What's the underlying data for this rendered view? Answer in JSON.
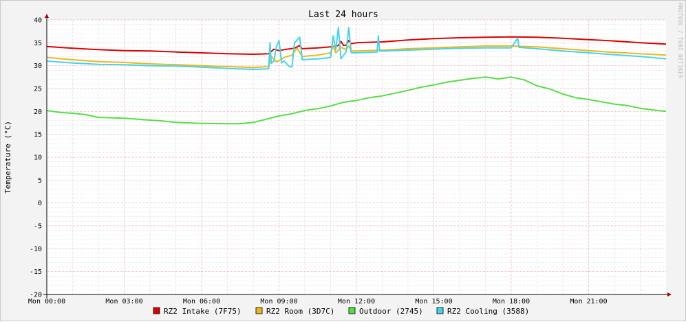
{
  "chart_data": {
    "type": "line",
    "title": "Last 24 hours",
    "ylabel": "Temperature (°C)",
    "xlabel": "",
    "watermark": "RRDTOOL / TOBI OETIKER",
    "ylim": [
      -20,
      40
    ],
    "yticks": [
      40,
      35,
      30,
      25,
      20,
      15,
      10,
      5,
      0,
      -5,
      -10,
      -15,
      -20
    ],
    "xlim": [
      0,
      24
    ],
    "xticks": [
      {
        "x": 0,
        "label": "Mon 00:00"
      },
      {
        "x": 3,
        "label": "Mon 03:00"
      },
      {
        "x": 6,
        "label": "Mon 06:00"
      },
      {
        "x": 9,
        "label": "Mon 09:00"
      },
      {
        "x": 12,
        "label": "Mon 12:00"
      },
      {
        "x": 15,
        "label": "Mon 15:00"
      },
      {
        "x": 18,
        "label": "Mon 18:00"
      },
      {
        "x": 21,
        "label": "Mon 21:00"
      }
    ],
    "grid": true,
    "legend_position": "bottom",
    "series": [
      {
        "name": "RZ2 Intake (7F75)",
        "color": "#dd0000",
        "points": [
          [
            0,
            34.2
          ],
          [
            1,
            33.8
          ],
          [
            2,
            33.5
          ],
          [
            3,
            33.3
          ],
          [
            4,
            33.2
          ],
          [
            5,
            33.0
          ],
          [
            6,
            32.8
          ],
          [
            7,
            32.6
          ],
          [
            8,
            32.5
          ],
          [
            8.6,
            32.6
          ],
          [
            8.8,
            33.6
          ],
          [
            9.0,
            33.3
          ],
          [
            9.2,
            33.5
          ],
          [
            9.6,
            33.8
          ],
          [
            9.8,
            34.4
          ],
          [
            9.9,
            33.7
          ],
          [
            10.5,
            33.9
          ],
          [
            11.0,
            34.1
          ],
          [
            11.3,
            34.4
          ],
          [
            11.4,
            35.3
          ],
          [
            11.5,
            34.4
          ],
          [
            11.6,
            34.5
          ],
          [
            11.7,
            35.5
          ],
          [
            11.8,
            34.8
          ],
          [
            12,
            35.0
          ],
          [
            13,
            35.2
          ],
          [
            14,
            35.6
          ],
          [
            15,
            35.9
          ],
          [
            16,
            36.1
          ],
          [
            17,
            36.2
          ],
          [
            18,
            36.3
          ],
          [
            19,
            36.2
          ],
          [
            20,
            36.0
          ],
          [
            21,
            35.7
          ],
          [
            22,
            35.4
          ],
          [
            23,
            35.0
          ],
          [
            24,
            34.7
          ]
        ]
      },
      {
        "name": "RZ2 Room (3D7C)",
        "color": "#e8b820",
        "points": [
          [
            0,
            31.8
          ],
          [
            1,
            31.3
          ],
          [
            2,
            30.9
          ],
          [
            3,
            30.7
          ],
          [
            4,
            30.4
          ],
          [
            5,
            30.2
          ],
          [
            6,
            30.0
          ],
          [
            7,
            29.8
          ],
          [
            8,
            29.6
          ],
          [
            8.6,
            29.8
          ],
          [
            8.7,
            32.0
          ],
          [
            8.9,
            30.8
          ],
          [
            9.2,
            31.8
          ],
          [
            9.5,
            32.3
          ],
          [
            9.7,
            33.8
          ],
          [
            9.9,
            32.0
          ],
          [
            10.5,
            32.3
          ],
          [
            11.0,
            32.8
          ],
          [
            11.1,
            34.3
          ],
          [
            11.2,
            32.8
          ],
          [
            11.4,
            34.0
          ],
          [
            11.6,
            33.5
          ],
          [
            11.7,
            34.3
          ],
          [
            11.8,
            33.2
          ],
          [
            12,
            33.2
          ],
          [
            13,
            33.4
          ],
          [
            14,
            33.7
          ],
          [
            15,
            33.9
          ],
          [
            16,
            34.1
          ],
          [
            17,
            34.3
          ],
          [
            18,
            34.3
          ],
          [
            19,
            34.1
          ],
          [
            20,
            33.7
          ],
          [
            21,
            33.3
          ],
          [
            22,
            32.9
          ],
          [
            23,
            32.6
          ],
          [
            24,
            32.3
          ]
        ]
      },
      {
        "name": "Outdoor (2745)",
        "color": "#55dd44",
        "points": [
          [
            0,
            20.2
          ],
          [
            0.5,
            19.8
          ],
          [
            1,
            19.6
          ],
          [
            1.5,
            19.3
          ],
          [
            2,
            18.7
          ],
          [
            3,
            18.5
          ],
          [
            4,
            18.1
          ],
          [
            4.5,
            17.9
          ],
          [
            5,
            17.6
          ],
          [
            6,
            17.4
          ],
          [
            7,
            17.3
          ],
          [
            7.5,
            17.3
          ],
          [
            8,
            17.6
          ],
          [
            8.5,
            18.3
          ],
          [
            9,
            19.0
          ],
          [
            9.5,
            19.5
          ],
          [
            10,
            20.2
          ],
          [
            10.5,
            20.6
          ],
          [
            11,
            21.2
          ],
          [
            11.5,
            22.0
          ],
          [
            12,
            22.4
          ],
          [
            12.5,
            23.0
          ],
          [
            13,
            23.4
          ],
          [
            13.5,
            24.0
          ],
          [
            14,
            24.6
          ],
          [
            14.5,
            25.3
          ],
          [
            15,
            25.8
          ],
          [
            15.5,
            26.4
          ],
          [
            16,
            26.8
          ],
          [
            16.5,
            27.2
          ],
          [
            17,
            27.5
          ],
          [
            17.5,
            27.1
          ],
          [
            18,
            27.5
          ],
          [
            18.5,
            26.9
          ],
          [
            19,
            25.6
          ],
          [
            19.5,
            24.9
          ],
          [
            20,
            23.8
          ],
          [
            20.5,
            23.0
          ],
          [
            21,
            22.6
          ],
          [
            21.5,
            22.1
          ],
          [
            22,
            21.6
          ],
          [
            22.5,
            21.3
          ],
          [
            23,
            20.7
          ],
          [
            23.5,
            20.3
          ],
          [
            24,
            20.0
          ]
        ]
      },
      {
        "name": "RZ2 Cooling (3588)",
        "color": "#44d4e8",
        "points": [
          [
            0,
            31.0
          ],
          [
            1,
            30.6
          ],
          [
            2,
            30.3
          ],
          [
            3,
            30.2
          ],
          [
            4,
            30.0
          ],
          [
            5,
            29.9
          ],
          [
            6,
            29.7
          ],
          [
            7,
            29.4
          ],
          [
            8,
            29.2
          ],
          [
            8.6,
            29.3
          ],
          [
            8.65,
            35.0
          ],
          [
            8.7,
            30.5
          ],
          [
            8.8,
            31.0
          ],
          [
            8.9,
            34.2
          ],
          [
            9.0,
            35.5
          ],
          [
            9.1,
            30.6
          ],
          [
            9.2,
            31.0
          ],
          [
            9.4,
            29.8
          ],
          [
            9.5,
            29.7
          ],
          [
            9.6,
            35.0
          ],
          [
            9.8,
            36.2
          ],
          [
            9.9,
            31.3
          ],
          [
            10.5,
            31.5
          ],
          [
            11.0,
            31.8
          ],
          [
            11.1,
            36.5
          ],
          [
            11.2,
            33.5
          ],
          [
            11.3,
            38.3
          ],
          [
            11.4,
            31.5
          ],
          [
            11.6,
            33.0
          ],
          [
            11.7,
            38.3
          ],
          [
            11.8,
            32.8
          ],
          [
            12,
            32.8
          ],
          [
            12.8,
            33.0
          ],
          [
            12.85,
            36.5
          ],
          [
            12.9,
            33.2
          ],
          [
            13,
            33.2
          ],
          [
            14,
            33.4
          ],
          [
            15,
            33.6
          ],
          [
            16,
            33.8
          ],
          [
            17,
            33.9
          ],
          [
            18,
            33.9
          ],
          [
            18.25,
            36.0
          ],
          [
            18.3,
            34.0
          ],
          [
            19,
            33.7
          ],
          [
            20,
            33.2
          ],
          [
            21,
            32.8
          ],
          [
            22,
            32.4
          ],
          [
            23,
            32.0
          ],
          [
            24,
            31.5
          ]
        ]
      }
    ]
  }
}
